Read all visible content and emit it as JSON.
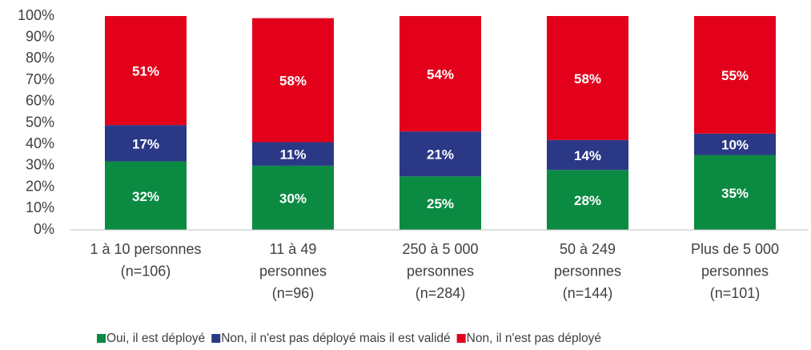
{
  "chart_data": {
    "type": "stacked_bar",
    "categories": [
      [
        "1 à 10 personnes",
        "(n=106)"
      ],
      [
        "11 à 49",
        "personnes",
        "(n=96)"
      ],
      [
        "250 à 5 000",
        "personnes",
        "(n=284)"
      ],
      [
        "50 à 249",
        "personnes",
        "(n=144)"
      ],
      [
        "Plus de 5 000",
        "personnes",
        "(n=101)"
      ]
    ],
    "series": [
      {
        "name": "Oui, il est déployé",
        "color": "#0b8a42",
        "values": [
          32,
          30,
          25,
          28,
          35
        ],
        "value_labels": [
          "32%",
          "30%",
          "25%",
          "28%",
          "35%"
        ]
      },
      {
        "name": "Non, il n'est pas déployé mais il est validé",
        "color": "#2b3886",
        "values": [
          17,
          11,
          21,
          14,
          10
        ],
        "value_labels": [
          "17%",
          "11%",
          "21%",
          "14%",
          "10%"
        ]
      },
      {
        "name": "Non, il n'est pas déployé",
        "color": "#e2001a",
        "values": [
          51,
          58,
          54,
          58,
          55
        ],
        "value_labels": [
          "51%",
          "58%",
          "54%",
          "58%",
          "55%"
        ]
      }
    ],
    "ylim": [
      0,
      100
    ],
    "yticks": [
      {
        "value": 0,
        "label": "0%"
      },
      {
        "value": 10,
        "label": "10%"
      },
      {
        "value": 20,
        "label": "20%"
      },
      {
        "value": 30,
        "label": "30%"
      },
      {
        "value": 40,
        "label": "40%"
      },
      {
        "value": 50,
        "label": "50%"
      },
      {
        "value": 60,
        "label": "60%"
      },
      {
        "value": 70,
        "label": "70%"
      },
      {
        "value": 80,
        "label": "80%"
      },
      {
        "value": 90,
        "label": "90%"
      },
      {
        "value": 100,
        "label": "100%"
      }
    ],
    "legend": "bottom"
  }
}
